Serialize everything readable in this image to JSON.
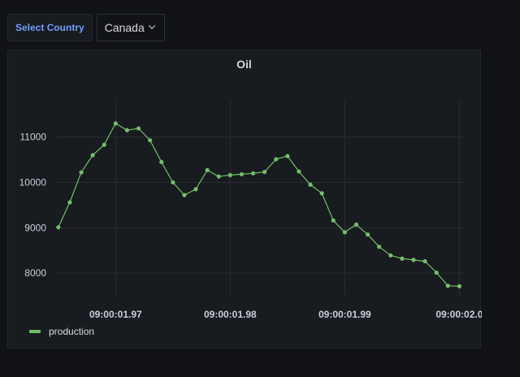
{
  "variables": {
    "label": "Select Country",
    "value": "Canada"
  },
  "panel": {
    "title": "Oil"
  },
  "colors": {
    "series": "#73bf69",
    "grid": "#2a2d33",
    "axis_text": "#c7d0d9"
  },
  "legend": {
    "label": "production"
  },
  "chart_data": {
    "type": "line",
    "title": "Oil",
    "xlabel": "",
    "ylabel": "",
    "x_ticks": [
      {
        "value": 0,
        "label": "09:00:01.97"
      },
      {
        "value": 10,
        "label": "09:00:01.98"
      },
      {
        "value": 20,
        "label": "09:00:01.99"
      },
      {
        "value": 30,
        "label": "09:00:02.0"
      }
    ],
    "xlim": [
      -5.2,
      30.4
    ],
    "y_ticks": [
      8000,
      9000,
      10000,
      11000
    ],
    "ylim": [
      7500,
      11800
    ],
    "grid": true,
    "legend_position": "bottom-left",
    "series": [
      {
        "name": "production",
        "x": [
          -5,
          -4,
          -3,
          -2,
          -1,
          0,
          1,
          2,
          3,
          4,
          5,
          6,
          7,
          8,
          9,
          10,
          11,
          12,
          13,
          14,
          15,
          16,
          17,
          18,
          19,
          20,
          21,
          22,
          23,
          24,
          25,
          26,
          27,
          28,
          29,
          30
        ],
        "values": [
          9010,
          9560,
          10220,
          10600,
          10830,
          11300,
          11150,
          11190,
          10930,
          10450,
          10000,
          9720,
          9850,
          10270,
          10130,
          10160,
          10180,
          10200,
          10230,
          10510,
          10580,
          10240,
          9950,
          9760,
          9160,
          8900,
          9070,
          8850,
          8580,
          8390,
          8320,
          8290,
          8260,
          8010,
          7720,
          7710
        ]
      }
    ]
  }
}
